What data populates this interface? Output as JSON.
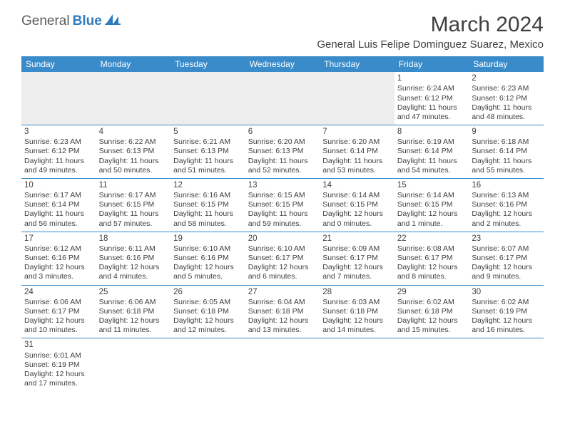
{
  "brand": {
    "name_part1": "General",
    "name_part2": "Blue"
  },
  "title": "March 2024",
  "location": "General Luis Felipe Dominguez Suarez, Mexico",
  "colors": {
    "header_bg": "#3a8bc9",
    "header_text": "#ffffff",
    "cell_border": "#3a8bc9",
    "text": "#404040",
    "logo_gray": "#5b5b5b",
    "logo_blue": "#2f7bbf",
    "shade": "#ededed"
  },
  "day_headers": [
    "Sunday",
    "Monday",
    "Tuesday",
    "Wednesday",
    "Thursday",
    "Friday",
    "Saturday"
  ],
  "weeks": [
    [
      null,
      null,
      null,
      null,
      null,
      {
        "n": "1",
        "sr": "6:24 AM",
        "ss": "6:12 PM",
        "dl": "11 hours and 47 minutes."
      },
      {
        "n": "2",
        "sr": "6:23 AM",
        "ss": "6:12 PM",
        "dl": "11 hours and 48 minutes."
      }
    ],
    [
      {
        "n": "3",
        "sr": "6:23 AM",
        "ss": "6:12 PM",
        "dl": "11 hours and 49 minutes."
      },
      {
        "n": "4",
        "sr": "6:22 AM",
        "ss": "6:13 PM",
        "dl": "11 hours and 50 minutes."
      },
      {
        "n": "5",
        "sr": "6:21 AM",
        "ss": "6:13 PM",
        "dl": "11 hours and 51 minutes."
      },
      {
        "n": "6",
        "sr": "6:20 AM",
        "ss": "6:13 PM",
        "dl": "11 hours and 52 minutes."
      },
      {
        "n": "7",
        "sr": "6:20 AM",
        "ss": "6:14 PM",
        "dl": "11 hours and 53 minutes."
      },
      {
        "n": "8",
        "sr": "6:19 AM",
        "ss": "6:14 PM",
        "dl": "11 hours and 54 minutes."
      },
      {
        "n": "9",
        "sr": "6:18 AM",
        "ss": "6:14 PM",
        "dl": "11 hours and 55 minutes."
      }
    ],
    [
      {
        "n": "10",
        "sr": "6:17 AM",
        "ss": "6:14 PM",
        "dl": "11 hours and 56 minutes."
      },
      {
        "n": "11",
        "sr": "6:17 AM",
        "ss": "6:15 PM",
        "dl": "11 hours and 57 minutes."
      },
      {
        "n": "12",
        "sr": "6:16 AM",
        "ss": "6:15 PM",
        "dl": "11 hours and 58 minutes."
      },
      {
        "n": "13",
        "sr": "6:15 AM",
        "ss": "6:15 PM",
        "dl": "11 hours and 59 minutes."
      },
      {
        "n": "14",
        "sr": "6:14 AM",
        "ss": "6:15 PM",
        "dl": "12 hours and 0 minutes."
      },
      {
        "n": "15",
        "sr": "6:14 AM",
        "ss": "6:15 PM",
        "dl": "12 hours and 1 minute."
      },
      {
        "n": "16",
        "sr": "6:13 AM",
        "ss": "6:16 PM",
        "dl": "12 hours and 2 minutes."
      }
    ],
    [
      {
        "n": "17",
        "sr": "6:12 AM",
        "ss": "6:16 PM",
        "dl": "12 hours and 3 minutes."
      },
      {
        "n": "18",
        "sr": "6:11 AM",
        "ss": "6:16 PM",
        "dl": "12 hours and 4 minutes."
      },
      {
        "n": "19",
        "sr": "6:10 AM",
        "ss": "6:16 PM",
        "dl": "12 hours and 5 minutes."
      },
      {
        "n": "20",
        "sr": "6:10 AM",
        "ss": "6:17 PM",
        "dl": "12 hours and 6 minutes."
      },
      {
        "n": "21",
        "sr": "6:09 AM",
        "ss": "6:17 PM",
        "dl": "12 hours and 7 minutes."
      },
      {
        "n": "22",
        "sr": "6:08 AM",
        "ss": "6:17 PM",
        "dl": "12 hours and 8 minutes."
      },
      {
        "n": "23",
        "sr": "6:07 AM",
        "ss": "6:17 PM",
        "dl": "12 hours and 9 minutes."
      }
    ],
    [
      {
        "n": "24",
        "sr": "6:06 AM",
        "ss": "6:17 PM",
        "dl": "12 hours and 10 minutes."
      },
      {
        "n": "25",
        "sr": "6:06 AM",
        "ss": "6:18 PM",
        "dl": "12 hours and 11 minutes."
      },
      {
        "n": "26",
        "sr": "6:05 AM",
        "ss": "6:18 PM",
        "dl": "12 hours and 12 minutes."
      },
      {
        "n": "27",
        "sr": "6:04 AM",
        "ss": "6:18 PM",
        "dl": "12 hours and 13 minutes."
      },
      {
        "n": "28",
        "sr": "6:03 AM",
        "ss": "6:18 PM",
        "dl": "12 hours and 14 minutes."
      },
      {
        "n": "29",
        "sr": "6:02 AM",
        "ss": "6:18 PM",
        "dl": "12 hours and 15 minutes."
      },
      {
        "n": "30",
        "sr": "6:02 AM",
        "ss": "6:19 PM",
        "dl": "12 hours and 16 minutes."
      }
    ],
    [
      {
        "n": "31",
        "sr": "6:01 AM",
        "ss": "6:19 PM",
        "dl": "12 hours and 17 minutes."
      },
      null,
      null,
      null,
      null,
      null,
      null
    ]
  ],
  "labels": {
    "sunrise": "Sunrise:",
    "sunset": "Sunset:",
    "daylight": "Daylight:"
  }
}
